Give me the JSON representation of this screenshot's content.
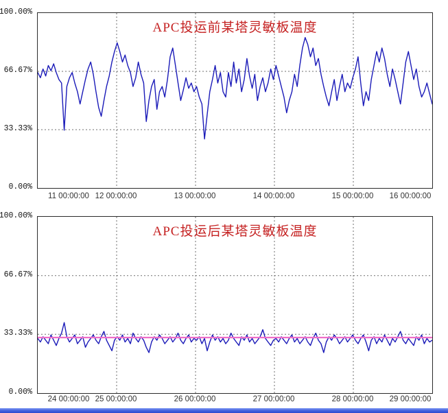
{
  "page": {
    "background": "#ffffff",
    "bottom_bar": {
      "name": "window-edge-bar",
      "color_top": "#7b95f2",
      "color_bottom": "#2d49cf"
    }
  },
  "chart_data": [
    {
      "type": "line",
      "title": "APC投运前某塔灵敏板温度",
      "title_color": "#c52222",
      "line_color": "#1a1ab8",
      "grid": true,
      "grid_color": "#6e6e6e",
      "ylim": [
        0,
        100
      ],
      "y_ticks": [
        "100.00%",
        "66.67%",
        "33.33%",
        "0.00%"
      ],
      "x_ticks": [
        "11 00:00:00",
        "12 00:00:00",
        "13 00:00:00",
        "14 00:00:00",
        "15 00:00:00",
        "16 00:00:00"
      ],
      "series": [
        {
          "values": [
            66,
            63,
            68,
            64,
            70,
            67,
            71,
            66,
            62,
            60,
            33,
            58,
            63,
            66,
            60,
            55,
            48,
            55,
            62,
            68,
            72,
            65,
            55,
            46,
            41,
            50,
            58,
            64,
            72,
            78,
            83,
            78,
            72,
            76,
            70,
            66,
            58,
            63,
            72,
            65,
            60,
            38,
            50,
            58,
            62,
            45,
            55,
            58,
            52,
            62,
            75,
            80,
            70,
            60,
            50,
            56,
            63,
            57,
            60,
            55,
            58,
            52,
            48,
            28,
            42,
            55,
            62,
            70,
            60,
            66,
            55,
            52,
            66,
            58,
            72,
            60,
            68,
            55,
            62,
            74,
            64,
            57,
            65,
            50,
            58,
            63,
            55,
            60,
            68,
            62,
            70,
            64,
            58,
            52,
            43,
            50,
            55,
            65,
            58,
            70,
            80,
            86,
            82,
            75,
            80,
            70,
            74,
            65,
            58,
            52,
            47,
            55,
            62,
            50,
            58,
            65,
            55,
            60,
            57,
            63,
            68,
            75,
            60,
            47,
            55,
            50,
            62,
            70,
            78,
            72,
            80,
            74,
            65,
            58,
            68,
            62,
            55,
            48,
            60,
            72,
            78,
            70,
            62,
            68,
            58,
            52,
            55,
            60,
            54,
            48
          ]
        }
      ]
    },
    {
      "type": "line",
      "title": "APC投运后某塔灵敏板温度",
      "title_color": "#c52222",
      "line_color": "#1a1ab8",
      "grid": true,
      "grid_color": "#6e6e6e",
      "ylim": [
        0,
        100
      ],
      "y_ticks": [
        "100.00%",
        "66.67%",
        "33.33%",
        "0.00%"
      ],
      "x_ticks": [
        "24 00:00:00",
        "25 00:00:00",
        "26 00:00:00",
        "27 00:00:00",
        "28 00:00:00",
        "29 00:00:00"
      ],
      "reference_line": {
        "value": 31.5,
        "color": "#ee6ec8"
      },
      "series": [
        {
          "values": [
            31,
            29,
            32,
            30,
            28,
            33,
            30,
            27,
            31,
            34,
            40,
            32,
            29,
            31,
            33,
            28,
            30,
            32,
            26,
            29,
            31,
            33,
            30,
            28,
            32,
            35,
            30,
            27,
            24,
            30,
            32,
            30,
            33,
            29,
            31,
            28,
            34,
            31,
            29,
            32,
            30,
            26,
            23,
            29,
            32,
            30,
            33,
            31,
            28,
            30,
            32,
            29,
            31,
            34,
            30,
            28,
            31,
            33,
            29,
            31,
            30,
            32,
            28,
            31,
            24,
            29,
            33,
            30,
            32,
            29,
            31,
            28,
            30,
            34,
            31,
            29,
            27,
            32,
            30,
            33,
            29,
            31,
            28,
            30,
            32,
            36,
            31,
            29,
            27,
            30,
            31,
            29,
            32,
            30,
            28,
            31,
            33,
            29,
            31,
            28,
            30,
            32,
            29,
            27,
            31,
            34,
            30,
            28,
            23,
            29,
            32,
            30,
            33,
            31,
            28,
            30,
            32,
            29,
            31,
            33,
            30,
            28,
            31,
            33,
            29,
            24,
            30,
            32,
            28,
            31,
            29,
            33,
            30,
            27,
            31,
            29,
            32,
            35,
            30,
            28,
            31,
            29,
            27,
            32,
            30,
            33,
            28,
            31,
            29,
            30
          ]
        }
      ]
    }
  ]
}
